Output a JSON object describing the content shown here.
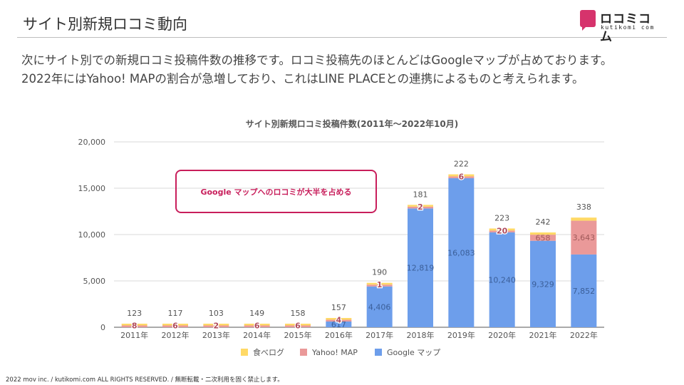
{
  "page": {
    "title": "サイト別新規ロコミ動向",
    "description_lines": [
      "次にサイト別での新規ロコミ投稿件数の推移です。ロコミ投稿先のほとんどはGoogleマップが占めております。",
      "2022年にはYahoo! MAPの割合が急増しており、これはLINE PLACEとの連携によるものと考えられます。"
    ],
    "footer": "2022 mov inc. / kutikomi.com ALL RIGHTS RESERVED. / 無断転載・二次利用を固く禁止します。"
  },
  "logo": {
    "name": "ロコミコム",
    "sub": "kutikomi com",
    "icon": "speech-bubble-icon",
    "color": "#d6336c"
  },
  "callout": {
    "text": "Google マップへのロコミが大半を占める",
    "color": "#c81e5b"
  },
  "chart_data": {
    "type": "bar",
    "stacked": true,
    "title": "サイト別新規ロコミ投稿件数(2011年〜2022年10月)",
    "categories": [
      "2011年",
      "2012年",
      "2013年",
      "2014年",
      "2015年",
      "2016年",
      "2017年",
      "2018年",
      "2019年",
      "2020年",
      "2021年",
      "2022年"
    ],
    "series": [
      {
        "name": "Google マップ",
        "color": "#6d9eeb",
        "values": [
          0,
          0,
          0,
          0,
          0,
          617,
          4406,
          12819,
          16083,
          10240,
          9329,
          7852
        ],
        "labels": [
          "",
          "",
          "",
          "",
          "",
          "617",
          "4,406",
          "12,819",
          "16,083",
          "10,240",
          "9,329",
          "7,852"
        ]
      },
      {
        "name": "Yahoo! MAP",
        "color": "#ea9999",
        "values": [
          8,
          6,
          2,
          6,
          6,
          4,
          1,
          2,
          6,
          20,
          658,
          3643
        ],
        "labels": [
          "8",
          "6",
          "2",
          "6",
          "6",
          "4",
          "1",
          "2",
          "6",
          "20",
          "658",
          "3,643"
        ]
      },
      {
        "name": "食べログ",
        "color": "#ffd966",
        "values": [
          123,
          117,
          103,
          149,
          158,
          157,
          190,
          181,
          222,
          223,
          242,
          338
        ],
        "labels": [
          "123",
          "117",
          "103",
          "149",
          "158",
          "157",
          "190",
          "181",
          "222",
          "223",
          "242",
          "338"
        ]
      }
    ],
    "ylim": [
      0,
      20000
    ],
    "yticks": [
      0,
      5000,
      10000,
      15000,
      20000
    ],
    "ytick_labels": [
      "0",
      "5,000",
      "10,000",
      "15,000",
      "20,000"
    ],
    "grid": true,
    "legend_position": "bottom",
    "legend_order": [
      "食べログ",
      "Yahoo! MAP",
      "Google マップ"
    ]
  }
}
